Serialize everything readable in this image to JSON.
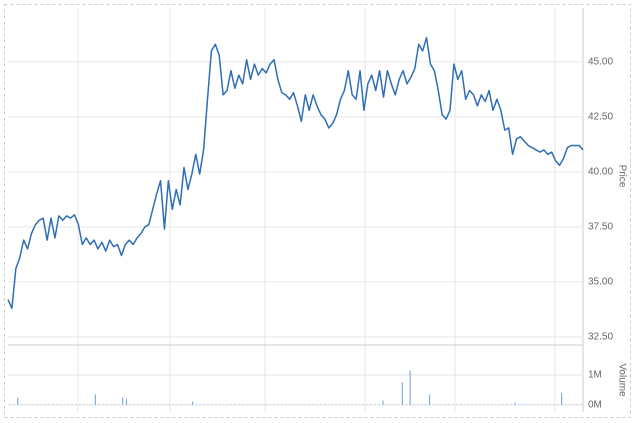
{
  "chart_data": [
    {
      "type": "line",
      "ylabel": "Price",
      "series": [
        {
          "name": "Price",
          "color": "#2f6eb5",
          "values": [
            34.2,
            33.8,
            35.6,
            36.1,
            36.9,
            36.5,
            37.2,
            37.6,
            37.8,
            37.9,
            36.9,
            37.9,
            37.0,
            38.0,
            37.8,
            38.0,
            37.9,
            38.05,
            37.6,
            36.7,
            37.0,
            36.7,
            36.9,
            36.5,
            36.8,
            36.4,
            36.9,
            36.6,
            36.7,
            36.2,
            36.7,
            36.9,
            36.7,
            37.0,
            37.2,
            37.5,
            37.6,
            38.3,
            39.0,
            39.6,
            37.4,
            39.6,
            38.3,
            39.2,
            38.5,
            40.2,
            39.2,
            39.9,
            40.8,
            39.9,
            41.0,
            43.3,
            45.5,
            45.8,
            45.3,
            43.5,
            43.7,
            44.6,
            43.8,
            44.4,
            44.0,
            45.1,
            44.2,
            44.9,
            44.4,
            44.7,
            44.5,
            44.9,
            45.1,
            44.2,
            43.6,
            43.5,
            43.3,
            43.6,
            43.0,
            42.3,
            43.5,
            42.8,
            43.5,
            43.0,
            42.6,
            42.4,
            42.0,
            42.2,
            42.6,
            43.3,
            43.7,
            44.6,
            43.5,
            43.3,
            44.6,
            42.8,
            44.0,
            44.4,
            43.7,
            44.6,
            43.4,
            44.6,
            44.0,
            43.5,
            44.2,
            44.6,
            44.0,
            44.3,
            44.7,
            45.8,
            45.5,
            46.1,
            44.9,
            44.6,
            43.7,
            42.6,
            42.4,
            42.8,
            44.9,
            44.2,
            44.6,
            43.3,
            43.7,
            43.5,
            43.0,
            43.5,
            43.2,
            43.7,
            42.8,
            43.3,
            42.8,
            41.9,
            42.0,
            40.8,
            41.5,
            41.6,
            41.4,
            41.2,
            41.1,
            41.0,
            40.9,
            41.0,
            40.8,
            40.9,
            40.5,
            40.3,
            40.6,
            41.1,
            41.2,
            41.2,
            41.2,
            41.0
          ]
        }
      ],
      "ylim": [
        32.36,
        47.45
      ],
      "yticks": [
        {
          "value": 32.5,
          "label": "32.50"
        },
        {
          "value": 35,
          "label": "35.00"
        },
        {
          "value": 37.5,
          "label": "37.50"
        },
        {
          "value": 40,
          "label": "40.00"
        },
        {
          "value": 42.5,
          "label": "42.50"
        },
        {
          "value": 45,
          "label": "45.00"
        }
      ],
      "grid": true
    },
    {
      "type": "bar",
      "ylabel": "Volume",
      "color": "#7fb0e0",
      "values": [
        20000,
        20000,
        250000,
        20000,
        20000,
        20000,
        20000,
        20000,
        20000,
        20000,
        20000,
        20000,
        20000,
        20000,
        20000,
        20000,
        20000,
        20000,
        20000,
        20000,
        20000,
        20000,
        350000,
        20000,
        20000,
        20000,
        20000,
        20000,
        20000,
        250000,
        200000,
        20000,
        20000,
        20000,
        20000,
        20000,
        20000,
        20000,
        20000,
        20000,
        20000,
        20000,
        20000,
        20000,
        20000,
        20000,
        20000,
        120000,
        20000,
        20000,
        20000,
        20000,
        20000,
        20000,
        20000,
        20000,
        20000,
        20000,
        20000,
        20000,
        20000,
        20000,
        20000,
        20000,
        20000,
        20000,
        20000,
        20000,
        20000,
        20000,
        20000,
        20000,
        20000,
        20000,
        20000,
        20000,
        20000,
        20000,
        20000,
        20000,
        20000,
        20000,
        20000,
        20000,
        20000,
        20000,
        20000,
        20000,
        20000,
        20000,
        20000,
        20000,
        20000,
        20000,
        20000,
        20000,
        150000,
        20000,
        20000,
        20000,
        20000,
        750000,
        20000,
        1150000,
        20000,
        20000,
        20000,
        20000,
        350000,
        20000,
        20000,
        20000,
        20000,
        20000,
        20000,
        20000,
        20000,
        20000,
        20000,
        20000,
        20000,
        20000,
        20000,
        20000,
        20000,
        20000,
        20000,
        20000,
        20000,
        20000,
        80000,
        20000,
        20000,
        20000,
        20000,
        20000,
        20000,
        20000,
        20000,
        20000,
        20000,
        20000,
        400000,
        20000,
        20000,
        20000,
        20000,
        20000
      ],
      "ylim": [
        -233000,
        1833000
      ],
      "yticks": [
        {
          "value": 0,
          "label": "0M"
        },
        {
          "value": 1000000,
          "label": "1M"
        }
      ],
      "grid": true
    }
  ]
}
